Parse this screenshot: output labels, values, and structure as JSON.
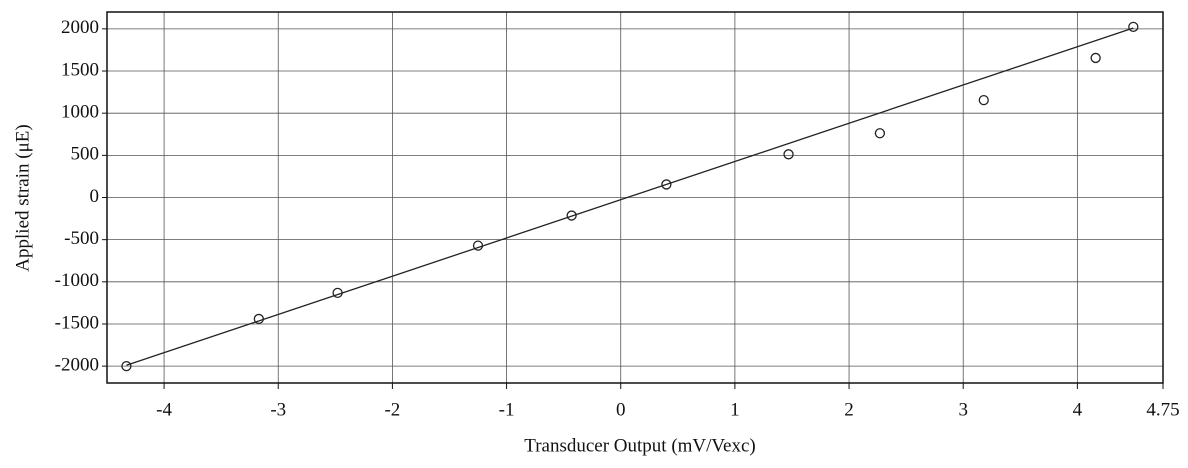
{
  "chart_data": {
    "type": "scatter",
    "xlabel": "Transducer Output (mV/Vexc)",
    "ylabel": "Applied strain (μE)",
    "xlim": [
      -4.5,
      4.75
    ],
    "xticks": [
      -4,
      -3,
      -2,
      -1,
      0,
      1,
      2,
      3,
      4,
      4.75
    ],
    "ylim": [
      -2200,
      2200
    ],
    "yticks": [
      -2000,
      -1500,
      -1000,
      -500,
      0,
      500,
      1000,
      1500,
      2000
    ],
    "grid": true,
    "series": [
      {
        "mode": "markers",
        "color": "#222222",
        "x": [
          -4.33,
          -3.17,
          -2.48,
          -1.25,
          -0.43,
          0.4,
          1.47,
          2.27,
          3.18,
          4.16,
          4.49
        ],
        "values": [
          -2000,
          -1440,
          -1131,
          -571,
          -214,
          155,
          512,
          762,
          1155,
          1655,
          2024
        ]
      },
      {
        "mode": "line",
        "color": "#222222",
        "x": [
          -4.33,
          4.49
        ],
        "values": [
          -1990,
          2010
        ]
      }
    ]
  }
}
